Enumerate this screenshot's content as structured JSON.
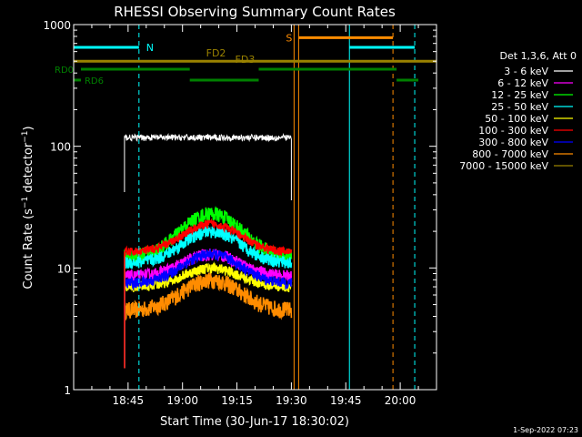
{
  "chart_data": {
    "type": "line",
    "title": "RHESSI Observing Summary Count Rates",
    "xlabel": "Start Time (30-Jun-17 18:30:02)",
    "ylabel": "Count Rate (s⁻¹ detector⁻¹)",
    "ylabel_main": "Count Rate (s",
    "ylabel_sup1": "−1",
    "ylabel_mid": " detector",
    "ylabel_sup2": "−1",
    "ylabel_end": ")",
    "y_scale": "log",
    "ylim": [
      1,
      1000
    ],
    "xlim_minutes": [
      0,
      100
    ],
    "x_tick_labels": [
      {
        "t": 15,
        "label": "18:45"
      },
      {
        "t": 30,
        "label": "19:00"
      },
      {
        "t": 45,
        "label": "19:15"
      },
      {
        "t": 60,
        "label": "19:30"
      },
      {
        "t": 75,
        "label": "19:45"
      },
      {
        "t": 90,
        "label": "20:00"
      }
    ],
    "y_tick_labels": [
      {
        "v": 1,
        "label": "1"
      },
      {
        "v": 10,
        "label": "10"
      },
      {
        "v": 100,
        "label": "100"
      },
      {
        "v": 1000,
        "label": "1000"
      }
    ],
    "legend_title": "Det 1,3,6, Att 0",
    "legend_position": "right",
    "series": [
      {
        "name": "3 - 6 keV",
        "color": "#ffffff",
        "start": 14,
        "end": 60,
        "base": 118,
        "peak": 118,
        "noise": 0.06
      },
      {
        "name": "6 - 12 keV",
        "color": "#ff00ff",
        "start": 14,
        "end": 60,
        "base": 8.5,
        "peak": 13,
        "noise": 0.12
      },
      {
        "name": "12 - 25 keV",
        "color": "#00ff00",
        "start": 14,
        "end": 60,
        "base": 12.5,
        "peak": 28,
        "noise": 0.14
      },
      {
        "name": "25 - 50 keV",
        "color": "#00ffff",
        "start": 14,
        "end": 60,
        "base": 11,
        "peak": 20,
        "noise": 0.12
      },
      {
        "name": "50 - 100 keV",
        "color": "#ffff00",
        "start": 14,
        "end": 60,
        "base": 7,
        "peak": 10,
        "noise": 0.1
      },
      {
        "name": "100 - 300 keV",
        "color": "#ff0000",
        "start": 14,
        "end": 60,
        "base": 13.5,
        "peak": 23,
        "noise": 0.08
      },
      {
        "name": "300 - 800 keV",
        "color": "#0000ff",
        "start": 14,
        "end": 60,
        "base": 7.5,
        "peak": 13,
        "noise": 0.1
      },
      {
        "name": "800 - 7000 keV",
        "color": "#ff8c00",
        "start": 14,
        "end": 60,
        "base": 4.5,
        "peak": 8,
        "noise": 0.16
      },
      {
        "name": "7000 - 15000 keV",
        "color": "#9a8200",
        "start": 14,
        "end": 60,
        "base": 0,
        "peak": 0,
        "noise": 0
      }
    ],
    "annotations": {
      "night_N": {
        "label": "N",
        "color": "#00ffff",
        "segments": [
          [
            0,
            18
          ],
          [
            76,
            94
          ]
        ],
        "level": 650,
        "dashed_at": [
          18,
          94
        ],
        "solid_at": [
          0,
          76
        ]
      },
      "saa_S": {
        "label": "S",
        "color": "#ff8c00",
        "segments": [
          [
            62,
            88
          ]
        ],
        "level": 780,
        "solid_at": [
          62
        ],
        "dashed_at": [
          88
        ]
      },
      "flare_FD2": {
        "label": "FD2",
        "color": "#9a8200",
        "segments": [
          [
            0,
            100
          ]
        ],
        "level": 500
      },
      "flare_FD3": {
        "label": "FD3",
        "color": "#9a8200"
      },
      "rd0": {
        "label": "RD0",
        "color": "#008000",
        "segments": [
          [
            2,
            32
          ],
          [
            51,
            89
          ]
        ],
        "level": 430
      },
      "rd6": {
        "label": "RD6",
        "color": "#008000",
        "segments": [
          [
            0,
            2
          ],
          [
            32,
            51
          ],
          [
            89,
            95
          ]
        ],
        "level": 350
      }
    }
  },
  "footer": {
    "timestamp": "1-Sep-2022 07:23"
  }
}
